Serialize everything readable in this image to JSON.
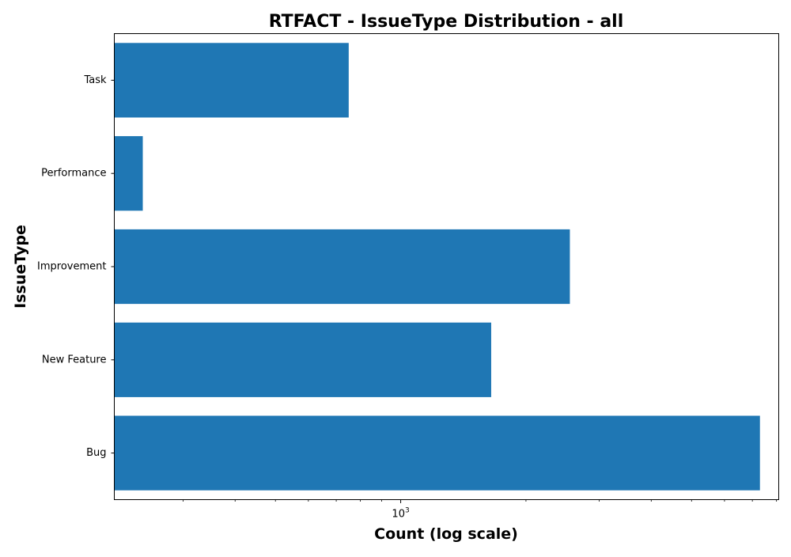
{
  "chart_data": {
    "type": "bar",
    "orientation": "horizontal",
    "title": "RTFACT - IssueType Distribution - all",
    "xlabel": "Count (log scale)",
    "ylabel": "IssueType",
    "xscale": "log",
    "xlim": [
      205,
      8100
    ],
    "x_major_tick": {
      "base": "10",
      "exponent": "3",
      "value": 1000
    },
    "grid": false,
    "bar_color": "#1f77b4",
    "categories": [
      "Bug",
      "New Feature",
      "Improvement",
      "Performance",
      "Task"
    ],
    "values": [
      7300,
      1650,
      2550,
      240,
      750
    ]
  }
}
